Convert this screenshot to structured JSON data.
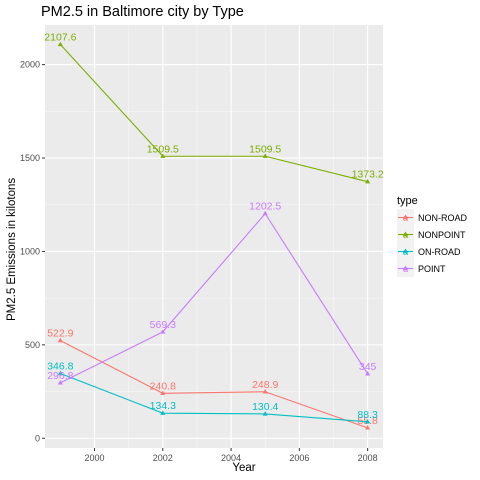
{
  "chart_data": {
    "type": "line",
    "title": "PM2.5 in Baltimore city by Type",
    "xlabel": "Year",
    "ylabel": "PM2.5 Emissions in kilotons",
    "x": [
      1999,
      2002,
      2005,
      2008
    ],
    "xlim": [
      1998.55,
      2008.45
    ],
    "ylim": [
      -52,
      2212
    ],
    "x_ticks": [
      2000,
      2002,
      2004,
      2006,
      2008
    ],
    "x_tick_labels": [
      "2000",
      "2002",
      "2004",
      "2006",
      "2008"
    ],
    "y_ticks": [
      0,
      500,
      1000,
      1500,
      2000
    ],
    "y_tick_labels": [
      "0",
      "500",
      "1000",
      "1500",
      "2000"
    ],
    "grid": true,
    "legend": {
      "title": "type",
      "position": "right"
    },
    "series": [
      {
        "name": "NON-ROAD",
        "color": "#F8766D",
        "values": [
          522.9,
          240.8,
          248.9,
          55.8
        ],
        "labels": [
          "522.9",
          "240.8",
          "248.9",
          "55.8"
        ]
      },
      {
        "name": "NONPOINT",
        "color": "#7CAE00",
        "values": [
          2107.6,
          1509.5,
          1509.5,
          1373.2
        ],
        "labels": [
          "2107.6",
          "1509.5",
          "1509.5",
          "1373.2"
        ]
      },
      {
        "name": "ON-ROAD",
        "color": "#00BFC4",
        "values": [
          346.8,
          134.3,
          130.4,
          88.3
        ],
        "labels": [
          "346.8",
          "134.3",
          "130.4",
          "88.3"
        ]
      },
      {
        "name": "POINT",
        "color": "#C77CFF",
        "values": [
          296.8,
          569.3,
          1202.5,
          345
        ],
        "labels": [
          "296.8",
          "569.3",
          "1202.5",
          "345"
        ]
      }
    ]
  }
}
